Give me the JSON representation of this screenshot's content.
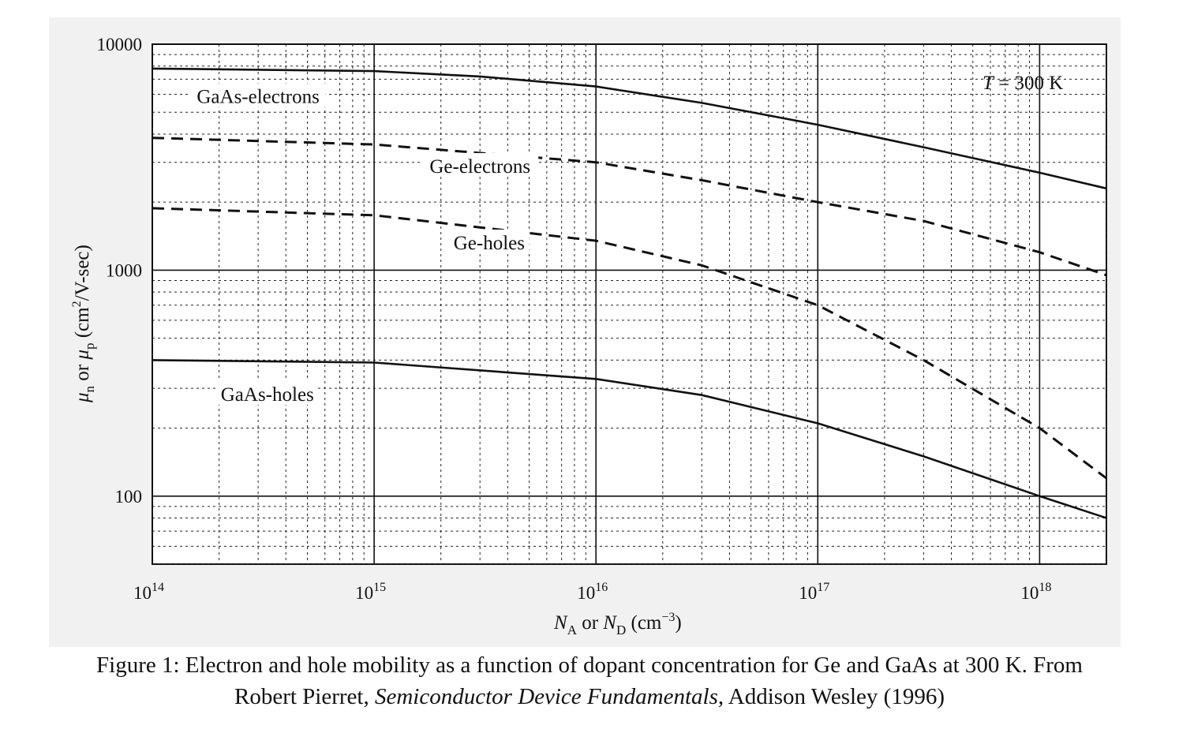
{
  "chart_data": {
    "type": "line",
    "x_scale": "log",
    "y_scale": "log",
    "xlim": [
      100000000000000.0,
      2e+18
    ],
    "ylim": [
      50,
      10000
    ],
    "grid": true,
    "xlabel": {
      "n1": "N",
      "s1": "A",
      "or": " or ",
      "n2": "N",
      "s2": "D",
      "unit": " (cm",
      "exp": "−3",
      "close": ")"
    },
    "ylabel": {
      "mu1": "μ",
      "s1": "n",
      "or": " or ",
      "mu2": "μ",
      "s2": "p",
      "unit": " (cm",
      "exp": "2",
      "tail": "/V-sec)"
    },
    "x_ticks": [
      {
        "base": "10",
        "exp": "14",
        "value": 100000000000000.0
      },
      {
        "base": "10",
        "exp": "15",
        "value": 1000000000000000.0
      },
      {
        "base": "10",
        "exp": "16",
        "value": 1e+16
      },
      {
        "base": "10",
        "exp": "17",
        "value": 1e+17
      },
      {
        "base": "10",
        "exp": "18",
        "value": 1e+18
      }
    ],
    "y_ticks": [
      {
        "label": "10000",
        "value": 10000
      },
      {
        "label": "1000",
        "value": 1000
      },
      {
        "label": "100",
        "value": 100
      }
    ],
    "annotation": {
      "T": "T",
      "rest": " = 300 K"
    },
    "series": [
      {
        "name": "GaAs-electrons",
        "style": "solid",
        "x": [
          100000000000000.0,
          1000000000000000.0,
          3000000000000000.0,
          1e+16,
          3e+16,
          1e+17,
          3e+17,
          1e+18,
          2e+18
        ],
        "y": [
          7800,
          7600,
          7200,
          6500,
          5500,
          4400,
          3500,
          2700,
          2300
        ]
      },
      {
        "name": "Ge-electrons",
        "style": "dashed",
        "x": [
          100000000000000.0,
          1000000000000000.0,
          1e+16,
          3e+16,
          1e+17,
          3e+17,
          1e+18,
          2e+18
        ],
        "y": [
          3850,
          3600,
          3000,
          2500,
          2000,
          1650,
          1200,
          950
        ]
      },
      {
        "name": "Ge-holes",
        "style": "dashed",
        "x": [
          100000000000000.0,
          1000000000000000.0,
          1e+16,
          3e+16,
          1e+17,
          3e+17,
          1e+18,
          2e+18
        ],
        "y": [
          1880,
          1750,
          1350,
          1050,
          700,
          400,
          200,
          120
        ]
      },
      {
        "name": "GaAs-holes",
        "style": "solid",
        "x": [
          100000000000000.0,
          1000000000000000.0,
          1e+16,
          3e+16,
          1e+17,
          3e+17,
          1e+18,
          2e+18
        ],
        "y": [
          400,
          390,
          330,
          280,
          210,
          150,
          100,
          80
        ]
      }
    ]
  },
  "caption": {
    "line1": "Figure 1: Electron and hole mobility as a function of dopant concentration for Ge and GaAs at 300 K. From",
    "author": "Robert Pierret, ",
    "book": "Semiconductor Device Fundamentals",
    "publisher": ", Addison Wesley (1996)"
  }
}
